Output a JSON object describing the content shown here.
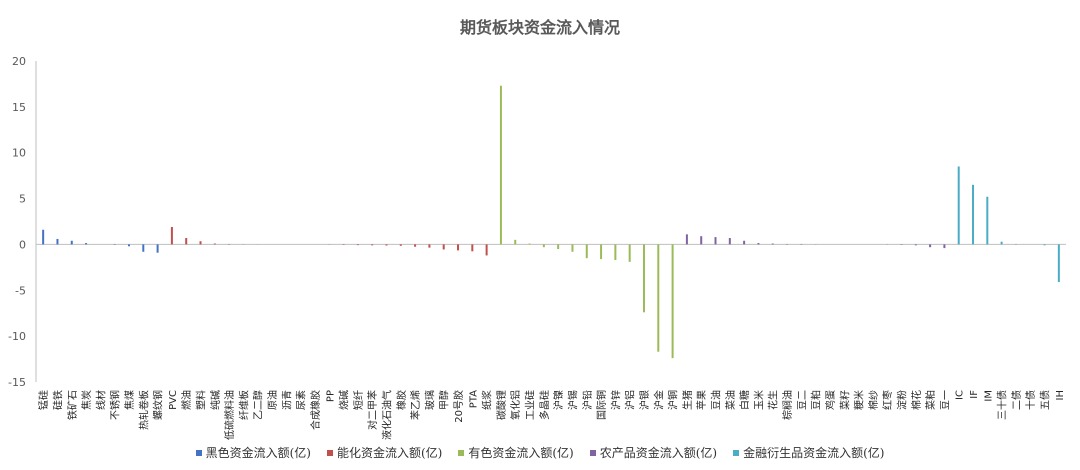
{
  "chart_data": {
    "type": "bar",
    "title": "期货板块资金流入情况",
    "xlabel": "",
    "ylabel": "",
    "ylim": [
      -15,
      20
    ],
    "yticks": [
      20,
      15,
      10,
      5,
      0,
      -5,
      -10,
      -15
    ],
    "grid": false,
    "legend_position": "bottom",
    "series": [
      {
        "name": "黑色资金流入额(亿)",
        "color": "#4472C4"
      },
      {
        "name": "能化资金流入额(亿)",
        "color": "#C0504D"
      },
      {
        "name": "有色资金流入额(亿)",
        "color": "#9BBB59"
      },
      {
        "name": "农产品资金流入额(亿)",
        "color": "#8064A2"
      },
      {
        "name": "金融衍生品资金流入额(亿)",
        "color": "#4BACC6"
      }
    ],
    "points": [
      {
        "label": "锰硅",
        "series": 0,
        "value": 1.6
      },
      {
        "label": "硅铁",
        "series": 0,
        "value": 0.6
      },
      {
        "label": "铁矿石",
        "series": 0,
        "value": 0.4
      },
      {
        "label": "焦炭",
        "series": 0,
        "value": 0.15
      },
      {
        "label": "线材",
        "series": 0,
        "value": 0.0
      },
      {
        "label": "不锈钢",
        "series": 0,
        "value": -0.05
      },
      {
        "label": "焦煤",
        "series": 0,
        "value": -0.2
      },
      {
        "label": "热轧卷板",
        "series": 0,
        "value": -0.8
      },
      {
        "label": "螺纹钢",
        "series": 0,
        "value": -0.9
      },
      {
        "label": "PVC",
        "series": 1,
        "value": 1.9
      },
      {
        "label": "燃油",
        "series": 1,
        "value": 0.7
      },
      {
        "label": "塑料",
        "series": 1,
        "value": 0.35
      },
      {
        "label": "纯碱",
        "series": 1,
        "value": 0.1
      },
      {
        "label": "低硫燃料油",
        "series": 1,
        "value": 0.05
      },
      {
        "label": "纤维板",
        "series": 1,
        "value": 0.02
      },
      {
        "label": "乙二醇",
        "series": 1,
        "value": 0.01
      },
      {
        "label": "原油",
        "series": 1,
        "value": 0.0
      },
      {
        "label": "沥青",
        "series": 1,
        "value": 0.0
      },
      {
        "label": "尿素",
        "series": 1,
        "value": 0.0
      },
      {
        "label": "合成橡胶",
        "series": 1,
        "value": 0.0
      },
      {
        "label": "PP",
        "series": 1,
        "value": -0.02
      },
      {
        "label": "烧碱",
        "series": 1,
        "value": -0.05
      },
      {
        "label": "短纤",
        "series": 1,
        "value": -0.08
      },
      {
        "label": "对二甲苯",
        "series": 1,
        "value": -0.1
      },
      {
        "label": "液化石油气",
        "series": 1,
        "value": -0.12
      },
      {
        "label": "橡胶",
        "series": 1,
        "value": -0.15
      },
      {
        "label": "苯乙烯",
        "series": 1,
        "value": -0.25
      },
      {
        "label": "玻璃",
        "series": 1,
        "value": -0.35
      },
      {
        "label": "甲醇",
        "series": 1,
        "value": -0.55
      },
      {
        "label": "20号胶",
        "series": 1,
        "value": -0.65
      },
      {
        "label": "PTA",
        "series": 1,
        "value": -0.75
      },
      {
        "label": "纸浆",
        "series": 1,
        "value": -1.2
      },
      {
        "label": "碳酸锂",
        "series": 2,
        "value": 17.3
      },
      {
        "label": "氧化铝",
        "series": 2,
        "value": 0.5
      },
      {
        "label": "工业硅",
        "series": 2,
        "value": 0.1
      },
      {
        "label": "多晶硅",
        "series": 2,
        "value": -0.3
      },
      {
        "label": "沪镍",
        "series": 2,
        "value": -0.5
      },
      {
        "label": "沪锡",
        "series": 2,
        "value": -0.8
      },
      {
        "label": "沪铅",
        "series": 2,
        "value": -1.5
      },
      {
        "label": "国际铜",
        "series": 2,
        "value": -1.6
      },
      {
        "label": "沪锌",
        "series": 2,
        "value": -1.7
      },
      {
        "label": "沪铝",
        "series": 2,
        "value": -1.9
      },
      {
        "label": "沪银",
        "series": 2,
        "value": -7.4
      },
      {
        "label": "沪金",
        "series": 2,
        "value": -11.7
      },
      {
        "label": "沪铜",
        "series": 2,
        "value": -12.4
      },
      {
        "label": "生猪",
        "series": 3,
        "value": 1.1
      },
      {
        "label": "苹果",
        "series": 3,
        "value": 0.9
      },
      {
        "label": "豆油",
        "series": 3,
        "value": 0.8
      },
      {
        "label": "菜油",
        "series": 3,
        "value": 0.7
      },
      {
        "label": "白糖",
        "series": 3,
        "value": 0.4
      },
      {
        "label": "玉米",
        "series": 3,
        "value": 0.15
      },
      {
        "label": "花生",
        "series": 3,
        "value": 0.1
      },
      {
        "label": "棕榈油",
        "series": 3,
        "value": 0.05
      },
      {
        "label": "豆二",
        "series": 3,
        "value": 0.05
      },
      {
        "label": "豆粕",
        "series": 3,
        "value": 0.02
      },
      {
        "label": "鸡蛋",
        "series": 3,
        "value": 0.0
      },
      {
        "label": "菜籽",
        "series": 3,
        "value": 0.0
      },
      {
        "label": "粳米",
        "series": 3,
        "value": 0.0
      },
      {
        "label": "棉纱",
        "series": 3,
        "value": 0.0
      },
      {
        "label": "红枣",
        "series": 3,
        "value": -0.02
      },
      {
        "label": "淀粉",
        "series": 3,
        "value": -0.05
      },
      {
        "label": "棉花",
        "series": 3,
        "value": -0.1
      },
      {
        "label": "菜粕",
        "series": 3,
        "value": -0.3
      },
      {
        "label": "豆一",
        "series": 3,
        "value": -0.4
      },
      {
        "label": "IC",
        "series": 4,
        "value": 8.5
      },
      {
        "label": "IF",
        "series": 4,
        "value": 6.5
      },
      {
        "label": "IM",
        "series": 4,
        "value": 5.2
      },
      {
        "label": "三十债",
        "series": 4,
        "value": 0.3
      },
      {
        "label": "二债",
        "series": 4,
        "value": 0.05
      },
      {
        "label": "十债",
        "series": 4,
        "value": 0.0
      },
      {
        "label": "五债",
        "series": 4,
        "value": -0.1
      },
      {
        "label": "IH",
        "series": 4,
        "value": -4.1
      }
    ]
  }
}
